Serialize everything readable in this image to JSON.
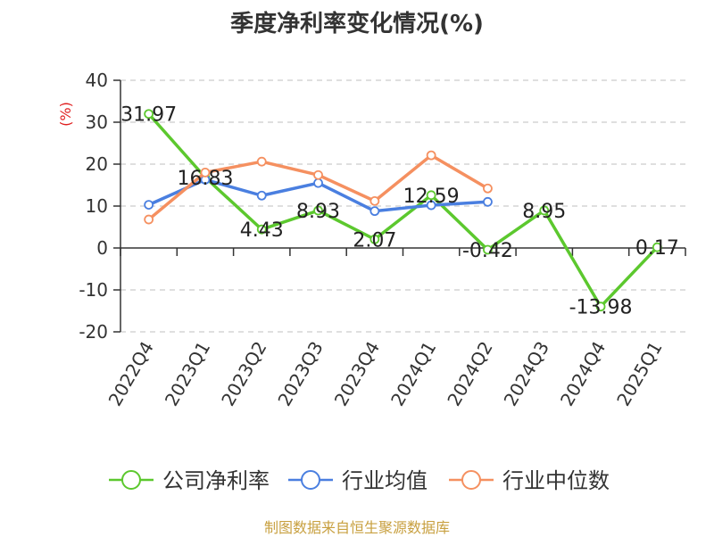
{
  "chart_data": {
    "type": "line",
    "title": "季度净利率变化情况(%)",
    "ylabel": "(%)",
    "xlabel": "",
    "categories": [
      "2022Q4",
      "2023Q1",
      "2023Q2",
      "2023Q3",
      "2023Q4",
      "2024Q1",
      "2024Q2",
      "2024Q3",
      "2024Q4",
      "2025Q1"
    ],
    "ylim": [
      -20,
      40
    ],
    "yticks": [
      40,
      30,
      20,
      10,
      0,
      -10,
      -20
    ],
    "ytick_labels": [
      "40",
      "30",
      "20",
      "10",
      "0",
      "-10",
      "-20"
    ],
    "grid": true,
    "legend_position": "bottom",
    "series": [
      {
        "name": "公司净利率",
        "color": "#5cc82e",
        "values": [
          31.97,
          16.83,
          4.43,
          8.93,
          2.07,
          12.59,
          -0.42,
          8.95,
          -13.98,
          0.17
        ],
        "labels": [
          "31.97",
          "16.83",
          "4.43",
          "8.93",
          "2.07",
          "12.59",
          "-0.42",
          "8.95",
          "-13.98",
          "0.17"
        ]
      },
      {
        "name": "行业均值",
        "color": "#4a7fe0",
        "values": [
          10.3,
          16.3,
          12.5,
          15.5,
          8.8,
          10.2,
          11.0,
          null,
          null,
          null
        ]
      },
      {
        "name": "行业中位数",
        "color": "#f59060",
        "values": [
          6.8,
          18.0,
          20.6,
          17.4,
          11.2,
          22.1,
          14.2,
          null,
          null,
          null
        ]
      }
    ]
  },
  "source": {
    "text": "制图数据来自恒生聚源数据库",
    "color": "#c8a040"
  },
  "ylabel_color": "#e02020"
}
